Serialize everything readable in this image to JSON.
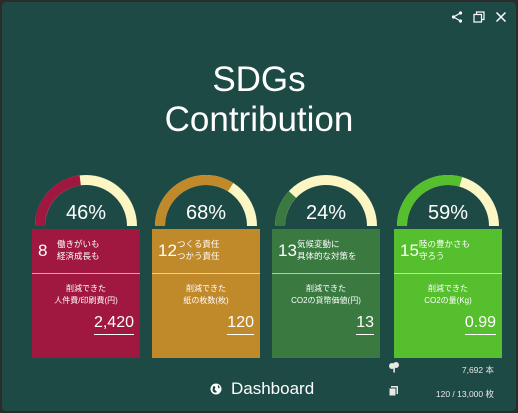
{
  "header": {
    "title_line1": "SDGs",
    "title_line2": "Contribution",
    "icons": [
      "share-icon",
      "popout-icon",
      "close-icon"
    ]
  },
  "cards": [
    {
      "percent_label": "46%",
      "percent": 46,
      "goal_number": "8",
      "goal_line1": "働きがいも",
      "goal_line2": "経済成長も",
      "metric_line1": "削減できた",
      "metric_line2": "人件費/印刷費(円)",
      "value": "2,420",
      "color": "#a0183f",
      "arc_color": "#a0183f"
    },
    {
      "percent_label": "68%",
      "percent": 68,
      "goal_number": "12",
      "goal_line1": "つくる責任",
      "goal_line2": "つかう責任",
      "metric_line1": "削減できた",
      "metric_line2": "紙の枚数(枚)",
      "value": "120",
      "color": "#c08a2b",
      "arc_color": "#c08a2b"
    },
    {
      "percent_label": "24%",
      "percent": 24,
      "goal_number": "13",
      "goal_line1": "気候変動に",
      "goal_line2": "具体的な対策を",
      "metric_line1": "削減できた",
      "metric_line2": "CO2の貨幣価値(円)",
      "value": "13",
      "color": "#3a7a41",
      "arc_color": "#3a7a41"
    },
    {
      "percent_label": "59%",
      "percent": 59,
      "goal_number": "15",
      "goal_line1": "陸の豊かさも",
      "goal_line2": "守ろう",
      "metric_line1": "削減できた",
      "metric_line2": "CO2の量(Kg)",
      "value": "0.99",
      "color": "#56bf2e",
      "arc_color": "#56bf2e"
    }
  ],
  "gauge_track_color": "#fbf6c4",
  "stats": {
    "trees": "7,692 本",
    "sheets": "120 / 13,000 枚"
  },
  "footer": {
    "dashboard_label": "Dashboard"
  }
}
